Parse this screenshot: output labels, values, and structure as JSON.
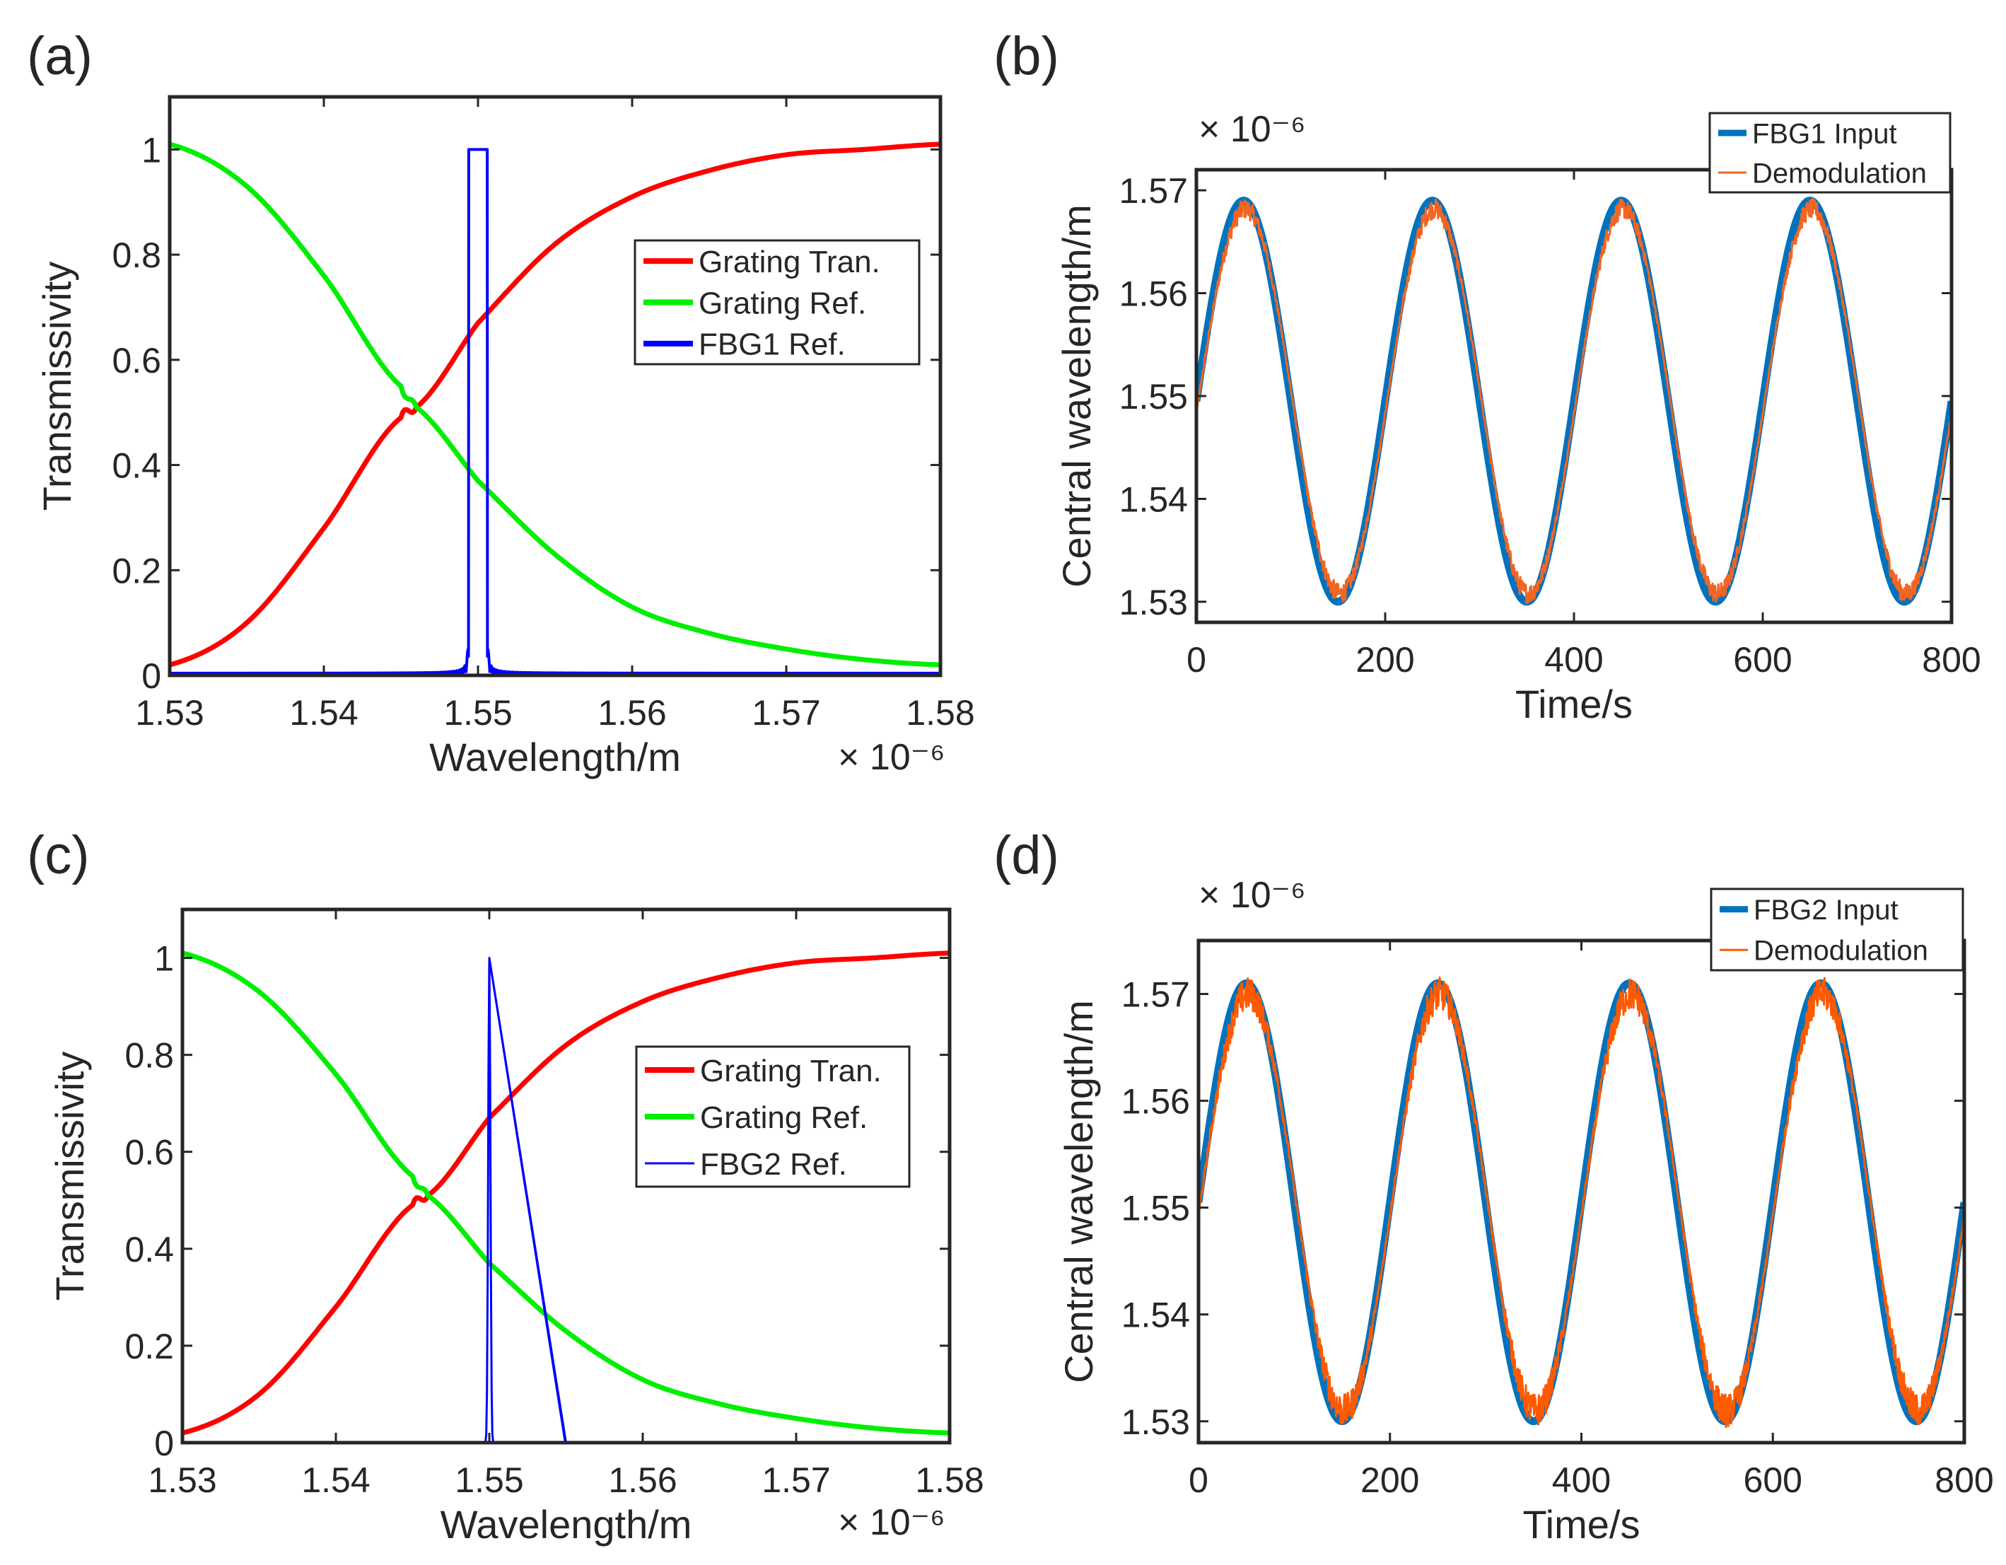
{
  "figure": {
    "panel_labels": [
      "(a)",
      "(b)",
      "(c)",
      "(d)"
    ],
    "exponent_label": "× 10⁻⁶"
  },
  "chart_data": [
    {
      "id": "a",
      "type": "line",
      "xlabel": "Wavelength/m",
      "ylabel": "Transmissivity",
      "xlim": [
        1.53,
        1.58
      ],
      "ylim": [
        0,
        1.1
      ],
      "x_ticks": [
        "1.53",
        "1.54",
        "1.55",
        "1.56",
        "1.57",
        "1.58"
      ],
      "y_ticks": [
        "0",
        "0.2",
        "0.4",
        "0.6",
        "0.8",
        "1"
      ],
      "x_exponent": "× 10⁻⁶",
      "legend_position": "center-right",
      "series": [
        {
          "name": "Grating Tran.",
          "color": "#ff0000",
          "kind": "sigmoid_rise",
          "x": [
            1.53,
            1.535,
            1.54,
            1.545,
            1.546,
            1.55,
            1.555,
            1.56,
            1.565,
            1.57,
            1.575,
            1.58
          ],
          "values": [
            0.02,
            0.1,
            0.28,
            0.49,
            0.51,
            0.67,
            0.82,
            0.91,
            0.96,
            0.99,
            1.0,
            1.01
          ]
        },
        {
          "name": "Grating Ref.",
          "color": "#00ee00",
          "kind": "sigmoid_fall",
          "x": [
            1.53,
            1.535,
            1.54,
            1.545,
            1.546,
            1.55,
            1.555,
            1.56,
            1.565,
            1.57,
            1.575,
            1.58
          ],
          "values": [
            1.01,
            0.93,
            0.76,
            0.55,
            0.51,
            0.37,
            0.23,
            0.13,
            0.08,
            0.05,
            0.03,
            0.02
          ]
        },
        {
          "name": "FBG1 Ref.",
          "color": "#0000ff",
          "kind": "fbg_wide",
          "center": 1.55,
          "peak": 1.0,
          "half_width": 0.0006
        }
      ]
    },
    {
      "id": "b",
      "type": "line",
      "xlabel": "Time/s",
      "ylabel": "Central wavelength/m",
      "xlim": [
        0,
        800
      ],
      "ylim": [
        1.528,
        1.572
      ],
      "x_ticks": [
        "0",
        "200",
        "400",
        "600",
        "800"
      ],
      "y_ticks": [
        "1.53",
        "1.54",
        "1.55",
        "1.56",
        "1.57"
      ],
      "y_exponent": "× 10⁻⁶",
      "legend_position": "top-right",
      "series": [
        {
          "name": "FBG1 Input",
          "color": "#0072bd",
          "kind": "sine",
          "offset": 1.5495,
          "amplitude": 0.0195,
          "period": 200
        },
        {
          "name": "Demodulation",
          "color": "#f26522",
          "kind": "sine_noisy",
          "offset": 1.5495,
          "amplitude": 0.0187,
          "period": 200,
          "phase_lag": 2,
          "noise": 0.0008
        }
      ]
    },
    {
      "id": "c",
      "type": "line",
      "xlabel": "Wavelength/m",
      "ylabel": "Transmissivity",
      "xlim": [
        1.53,
        1.58
      ],
      "ylim": [
        0,
        1.1
      ],
      "x_ticks": [
        "1.53",
        "1.54",
        "1.55",
        "1.56",
        "1.57",
        "1.58"
      ],
      "y_ticks": [
        "0",
        "0.2",
        "0.4",
        "0.6",
        "0.8",
        "1"
      ],
      "x_exponent": "× 10⁻⁶",
      "legend_position": "center-right",
      "series": [
        {
          "name": "Grating Tran.",
          "color": "#ff0000",
          "kind": "sigmoid_rise",
          "x": [
            1.53,
            1.535,
            1.54,
            1.545,
            1.546,
            1.55,
            1.555,
            1.56,
            1.565,
            1.57,
            1.575,
            1.58
          ],
          "values": [
            0.02,
            0.1,
            0.28,
            0.49,
            0.51,
            0.67,
            0.82,
            0.91,
            0.96,
            0.99,
            1.0,
            1.01
          ]
        },
        {
          "name": "Grating Ref.",
          "color": "#00ee00",
          "kind": "sigmoid_fall",
          "x": [
            1.53,
            1.535,
            1.54,
            1.545,
            1.546,
            1.55,
            1.555,
            1.56,
            1.565,
            1.57,
            1.575,
            1.58
          ],
          "values": [
            1.01,
            0.93,
            0.76,
            0.55,
            0.51,
            0.37,
            0.23,
            0.13,
            0.08,
            0.05,
            0.03,
            0.02
          ]
        },
        {
          "name": "FBG2 Ref.",
          "color": "#0000ff",
          "kind": "fbg_narrow",
          "center": 1.55,
          "peak": 1.0,
          "width": 0.0001
        }
      ]
    },
    {
      "id": "d",
      "type": "line",
      "xlabel": "Time/s",
      "ylabel": "Central wavelength/m",
      "xlim": [
        0,
        800
      ],
      "ylim": [
        1.528,
        1.575
      ],
      "x_ticks": [
        "0",
        "200",
        "400",
        "600",
        "800"
      ],
      "y_ticks": [
        "1.53",
        "1.54",
        "1.55",
        "1.56",
        "1.57"
      ],
      "y_exponent": "× 10⁻⁶",
      "legend_position": "top-right",
      "series": [
        {
          "name": "FBG2 Input",
          "color": "#0072bd",
          "kind": "sine",
          "offset": 1.5505,
          "amplitude": 0.0205,
          "period": 200
        },
        {
          "name": "Demodulation",
          "color": "#ff5a00",
          "kind": "sine_noisy",
          "offset": 1.5505,
          "amplitude": 0.0195,
          "period": 200,
          "phase_lag": 2,
          "noise": 0.0013
        }
      ]
    }
  ]
}
